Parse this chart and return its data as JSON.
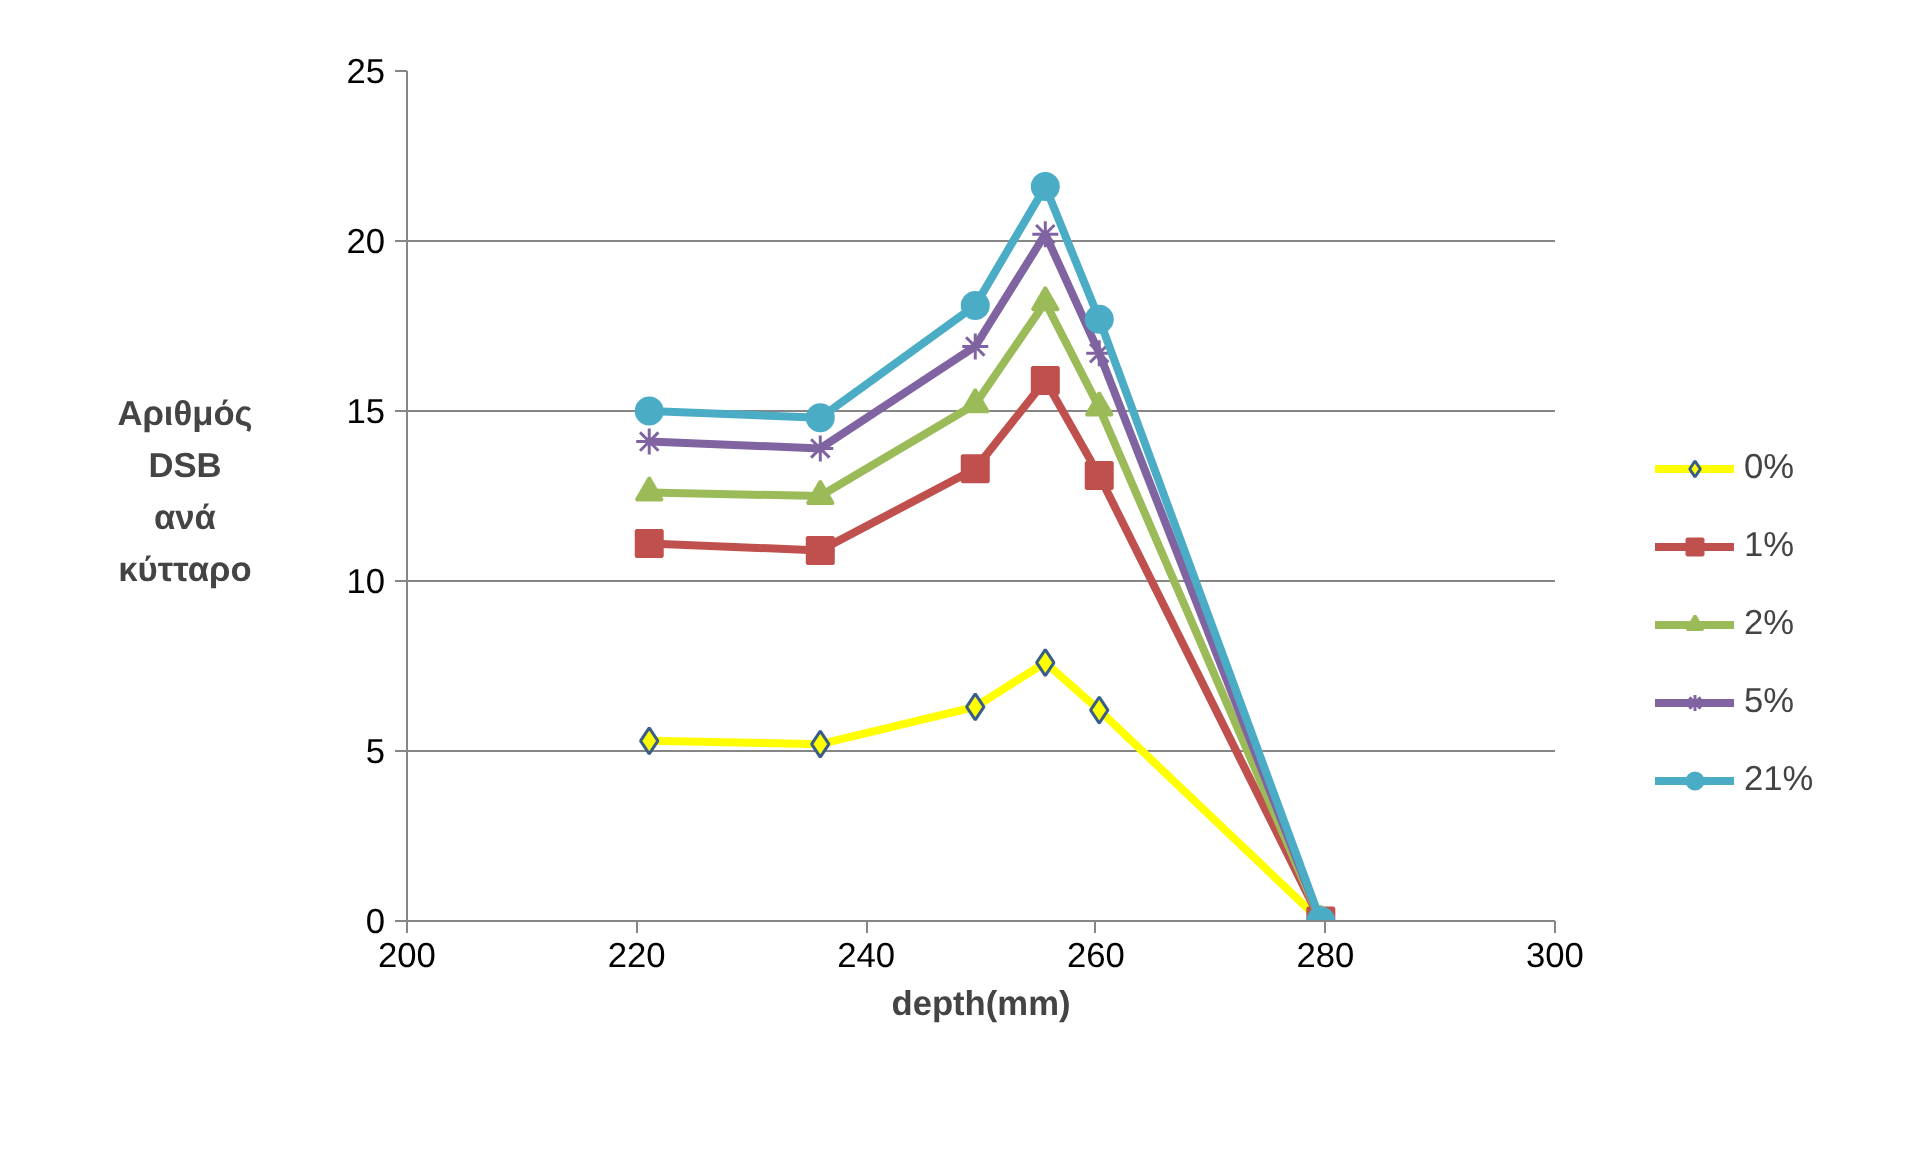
{
  "chart_data": {
    "type": "line",
    "xlabel": "depth(mm)",
    "ylabel": "Αριθμός\nDSB\nανά\nκύτταρο",
    "x": [
      221.1,
      236,
      249.5,
      255.6,
      260.3,
      279.6
    ],
    "xlim": [
      200,
      300
    ],
    "xticks": [
      200,
      220,
      240,
      260,
      280,
      300
    ],
    "ylim": [
      0,
      25
    ],
    "yticks": [
      0,
      5,
      10,
      15,
      20,
      25
    ],
    "grid": "y",
    "legend": "right",
    "line_style": "solid",
    "series": [
      {
        "name": "0%",
        "color": "#ffff00",
        "marker": "diamond",
        "values": [
          5.3,
          5.2,
          6.3,
          7.6,
          6.2,
          0
        ]
      },
      {
        "name": "1%",
        "color": "#c0504d",
        "marker": "square",
        "values": [
          11.1,
          10.9,
          13.3,
          15.9,
          13.1,
          0
        ]
      },
      {
        "name": "2%",
        "color": "#9bbb59",
        "marker": "triangle",
        "values": [
          12.6,
          12.5,
          15.2,
          18.2,
          15.1,
          0
        ]
      },
      {
        "name": "5%",
        "color": "#8064a2",
        "marker": "cross",
        "values": [
          14.1,
          13.9,
          16.9,
          20.2,
          16.7,
          0
        ]
      },
      {
        "name": "21%",
        "color": "#4bacc6",
        "marker": "circle",
        "values": [
          15.0,
          14.8,
          18.1,
          21.6,
          17.7,
          0
        ]
      }
    ]
  }
}
